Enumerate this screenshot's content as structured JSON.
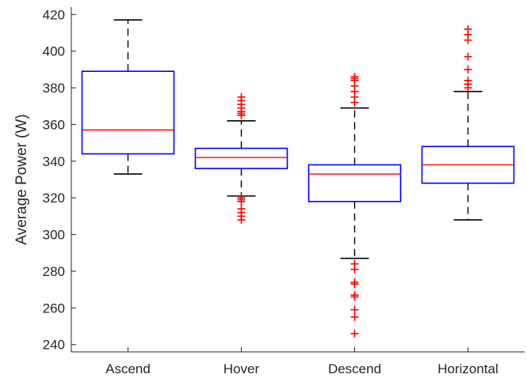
{
  "chart_data": {
    "type": "box",
    "title": "",
    "xlabel": "",
    "ylabel": "Average Power (W)",
    "categories": [
      "Ascend",
      "Hover",
      "Descend",
      "Horizontal"
    ],
    "ylim": [
      236,
      424
    ],
    "yticks": [
      240,
      260,
      280,
      300,
      320,
      340,
      360,
      380,
      400,
      420
    ],
    "grid": false,
    "colors": {
      "box": "#0000ff",
      "median": "#ff0000",
      "whisker": "#000000",
      "outlier": "#ff0000",
      "axis": "#262626"
    },
    "boxes": [
      {
        "category": "Ascend",
        "whisker_low": 333,
        "q1": 344,
        "median": 357,
        "q3": 389,
        "whisker_high": 417,
        "outliers": []
      },
      {
        "category": "Hover",
        "whisker_low": 321,
        "q1": 336,
        "median": 342,
        "q3": 347,
        "whisker_high": 362,
        "outliers": [
          308,
          310,
          312,
          314,
          318,
          319,
          320,
          365,
          366,
          367,
          369,
          371,
          373,
          375
        ]
      },
      {
        "category": "Descend",
        "whisker_low": 287,
        "q1": 318,
        "median": 333,
        "q3": 338,
        "whisker_high": 369,
        "outliers": [
          246,
          255,
          259,
          266,
          267,
          273,
          274,
          281,
          284,
          372,
          375,
          378,
          381,
          384,
          385,
          386
        ]
      },
      {
        "category": "Horizontal",
        "whisker_low": 308,
        "q1": 328,
        "median": 338,
        "q3": 348,
        "whisker_high": 378,
        "outliers": [
          380,
          382,
          384,
          390,
          397,
          406,
          409,
          412
        ]
      }
    ]
  }
}
